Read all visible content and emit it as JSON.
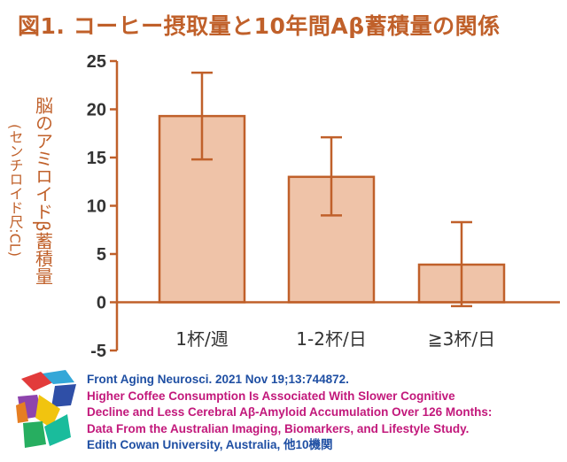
{
  "title": "図1. コーヒー摂取量と10年間Aβ蓄積量の関係",
  "chart_data": {
    "type": "bar",
    "title": "図1. コーヒー摂取量と10年間Aβ蓄積量の関係",
    "categories": [
      "1杯/週",
      "1-2杯/日",
      "≧3杯/日"
    ],
    "values": [
      19.3,
      13.0,
      3.9
    ],
    "error_upper": [
      23.8,
      17.1,
      8.3
    ],
    "error_lower": [
      14.8,
      9.0,
      -0.4
    ],
    "ylabel": "脳のアミロイドβ蓄積量",
    "ylabel_sub": "(センチロイド尺:CL)",
    "xlabel": "",
    "ylim": [
      -5,
      25
    ],
    "yticks": [
      -5,
      0,
      5,
      10,
      15,
      20,
      25
    ],
    "grid": false,
    "colors": {
      "bar_fill": "#efc3a8",
      "bar_edge": "#c0602a",
      "error_bar": "#c0602a",
      "axis": "#c0602a",
      "tick_label": "#333333"
    }
  },
  "citation": {
    "journal": "Front Aging Neurosci. 2021 Nov 19;13:744872.",
    "article_lines": [
      "Higher Coffee Consumption Is Associated With Slower Cognitive",
      "Decline and Less Cerebral Aβ-Amyloid Accumulation Over 126 Months:",
      "Data From the Australian Imaging, Biomarkers, and Lifestyle Study."
    ],
    "affiliation": "Edith Cowan University, Australia, 他10機関"
  },
  "logo_icon": "colored-cube-logo-icon"
}
